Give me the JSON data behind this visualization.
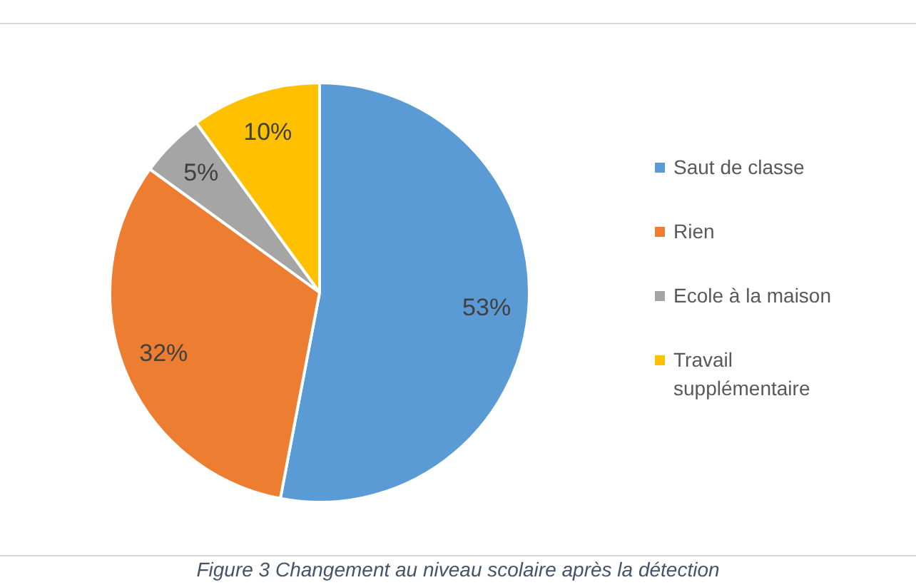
{
  "chart_data": {
    "type": "pie",
    "categories": [
      "Saut de classe",
      "Rien",
      "Ecole à la maison",
      "Travail supplémentaire"
    ],
    "values": [
      53,
      32,
      5,
      10
    ],
    "colors": [
      "#5b9bd5",
      "#ed7d31",
      "#a5a5a5",
      "#ffc000"
    ],
    "value_labels": [
      "53%",
      "32%",
      "5%",
      "10%"
    ],
    "legend": "right",
    "annotations": [
      "Figure 3 Changement au niveau scolaire après la détection"
    ]
  }
}
